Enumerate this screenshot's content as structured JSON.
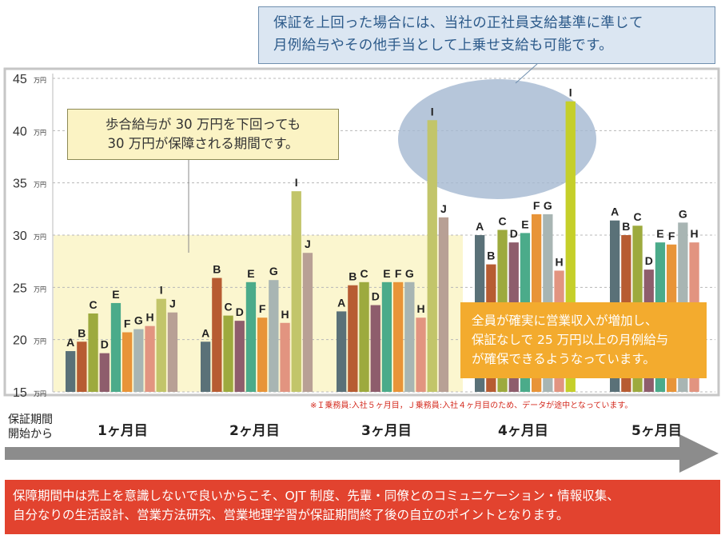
{
  "chart_data": {
    "type": "bar",
    "ylim": [
      15,
      45
    ],
    "y_ticks": [
      {
        "value": 45,
        "label": "45"
      },
      {
        "value": 40,
        "label": "40"
      },
      {
        "value": 35,
        "label": "35"
      },
      {
        "value": 30,
        "label": "30"
      },
      {
        "value": 25,
        "label": "25"
      },
      {
        "value": 20,
        "label": "20"
      },
      {
        "value": 15,
        "label": "15"
      }
    ],
    "y_unit": "万円",
    "grid": true,
    "guarantee_level": 30,
    "series_colors": {
      "A": "#5a7178",
      "B": "#b75c32",
      "C": "#9daa3e",
      "D": "#8e5d6c",
      "E": "#4bab8a",
      "F": "#e89438",
      "G": "#a8b5b3",
      "H": "#e29480",
      "I": "#c2c56a",
      "J": "#b8a095"
    },
    "groups": [
      {
        "month": "1ヶ月目",
        "bars": [
          {
            "name": "A",
            "value": 18.9
          },
          {
            "name": "B",
            "value": 19.8
          },
          {
            "name": "C",
            "value": 22.5
          },
          {
            "name": "D",
            "value": 18.7
          },
          {
            "name": "E",
            "value": 23.5
          },
          {
            "name": "F",
            "value": 20.7
          },
          {
            "name": "G",
            "value": 21.0
          },
          {
            "name": "H",
            "value": 21.3
          },
          {
            "name": "I",
            "value": 23.9
          },
          {
            "name": "J",
            "value": 22.6
          }
        ]
      },
      {
        "month": "2ヶ月目",
        "bars": [
          {
            "name": "A",
            "value": 19.8
          },
          {
            "name": "B",
            "value": 25.9
          },
          {
            "name": "C",
            "value": 22.3
          },
          {
            "name": "D",
            "value": 21.8
          },
          {
            "name": "E",
            "value": 25.5
          },
          {
            "name": "F",
            "value": 22.1
          },
          {
            "name": "G",
            "value": 25.7
          },
          {
            "name": "H",
            "value": 21.6
          },
          {
            "name": "I",
            "value": 34.2
          },
          {
            "name": "J",
            "value": 28.3
          }
        ]
      },
      {
        "month": "3ヶ月目",
        "bars": [
          {
            "name": "A",
            "value": 22.7
          },
          {
            "name": "B",
            "value": 25.2
          },
          {
            "name": "C",
            "value": 25.5
          },
          {
            "name": "D",
            "value": 23.3
          },
          {
            "name": "E",
            "value": 25.5
          },
          {
            "name": "F",
            "value": 25.5
          },
          {
            "name": "G",
            "value": 25.5
          },
          {
            "name": "H",
            "value": 22.1
          },
          {
            "name": "I",
            "value": 41.0
          },
          {
            "name": "J",
            "value": 31.7
          }
        ]
      },
      {
        "month": "4ヶ月目",
        "bars": [
          {
            "name": "A",
            "value": 30.0
          },
          {
            "name": "B",
            "value": 27.2
          },
          {
            "name": "C",
            "value": 30.5
          },
          {
            "name": "D",
            "value": 29.3
          },
          {
            "name": "E",
            "value": 30.2
          },
          {
            "name": "F",
            "value": 32.0
          },
          {
            "name": "G",
            "value": 32.0
          },
          {
            "name": "H",
            "value": 26.6
          },
          {
            "name": "I",
            "value": 42.8
          }
        ]
      },
      {
        "month": "5ヶ月目",
        "bars": [
          {
            "name": "A",
            "value": 31.4
          },
          {
            "name": "B",
            "value": 30.0
          },
          {
            "name": "C",
            "value": 30.9
          },
          {
            "name": "D",
            "value": 26.7
          },
          {
            "name": "E",
            "value": 29.3
          },
          {
            "name": "F",
            "value": 29.1
          },
          {
            "name": "G",
            "value": 31.2
          },
          {
            "name": "H",
            "value": 29.3
          }
        ]
      }
    ]
  },
  "callouts": {
    "top": [
      "保証を上回った場合には、当社の正社員支給基準に準じて",
      "月例給与やその他手当として上乗せ支給も可能です。"
    ],
    "yellow": [
      "歩合給与が 30 万円を下回っても",
      "30 万円が保障される期間です。"
    ],
    "orange": [
      "全員が確実に営業収入が増加し、",
      "保証なしで 25 万円以上の月例給与",
      "が確保できるようなっています。"
    ]
  },
  "footnote": "※Ｉ乗務員:入社５ヶ月目，Ｊ乗務員:入社４ヶ月目のため、データが途中となっています。",
  "period_label": [
    "保証期間",
    "開始から"
  ],
  "months": [
    "1ヶ月目",
    "2ヶ月目",
    "3ヶ月目",
    "4ヶ月目",
    "5ヶ月目"
  ],
  "bottom_message": [
    "保障期間中は売上を意識しないで良いからこそ、OJT 制度、先輩・同僚とのコミュニケーション・情報収集、",
    "自分なりの生活設計、営業方法研究、営業地理学習が保証期間終了後の自立のポイントとなります。"
  ]
}
